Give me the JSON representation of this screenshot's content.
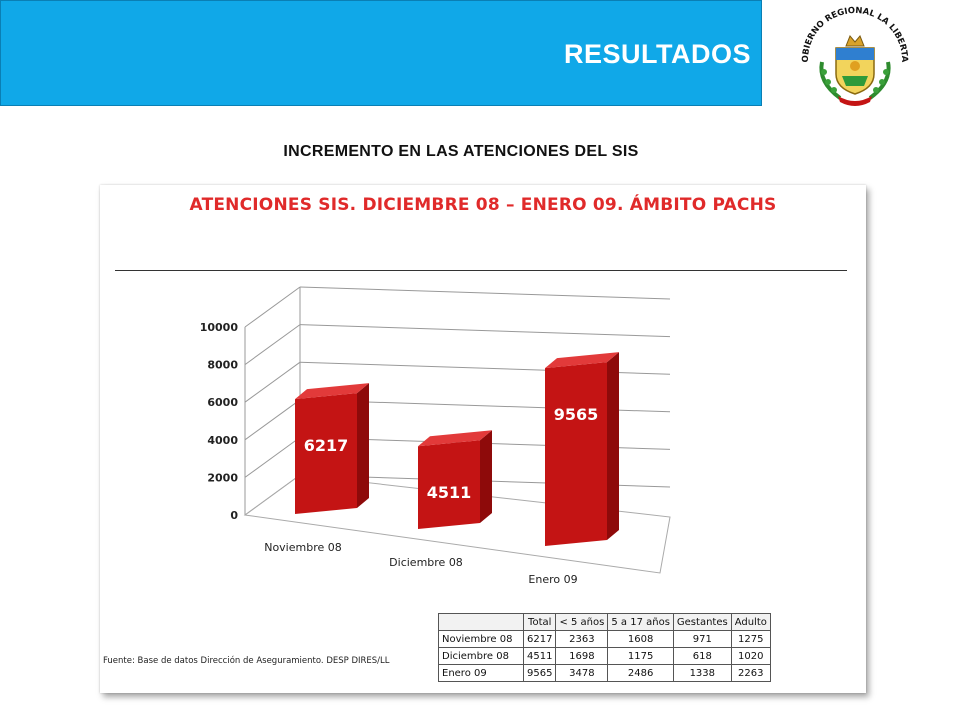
{
  "header": {
    "title": "RESULTADOS",
    "band_color": "#10a8e8"
  },
  "logo": {
    "text": "GOBIERNO REGIONAL LA LIBERTAD"
  },
  "subtitle": "INCREMENTO EN LAS ATENCIONES DEL SIS",
  "chart_panel": {
    "source_note": "Fuente: Base de datos Dirección de Aseguramiento. DESP DIRES/LL"
  },
  "chart_data": {
    "type": "bar",
    "title": "ATENCIONES SIS. DICIEMBRE 08 – ENERO 09. ÁMBITO PACHS",
    "categories": [
      "Noviembre 08",
      "Diciembre 08",
      "Enero 09"
    ],
    "values": [
      6217,
      4511,
      9565
    ],
    "data_labels": [
      "6217",
      "4511",
      "9565"
    ],
    "y_ticks": [
      "0",
      "2000",
      "4000",
      "6000",
      "8000",
      "10000"
    ],
    "ylim": [
      0,
      10000
    ],
    "grid": true,
    "bar_color": "#c41414",
    "title_color": "#e02a2a",
    "xlabel": "",
    "ylabel": ""
  },
  "table": {
    "headers": [
      "Total",
      "< 5 años",
      "5 a 17 años",
      "Gestantes",
      "Adulto"
    ],
    "rows": [
      {
        "label": "Noviembre 08",
        "values": [
          "6217",
          "2363",
          "1608",
          "971",
          "1275"
        ]
      },
      {
        "label": "Diciembre 08",
        "values": [
          "4511",
          "1698",
          "1175",
          "618",
          "1020"
        ]
      },
      {
        "label": "Enero 09",
        "values": [
          "9565",
          "3478",
          "2486",
          "1338",
          "2263"
        ]
      }
    ]
  }
}
